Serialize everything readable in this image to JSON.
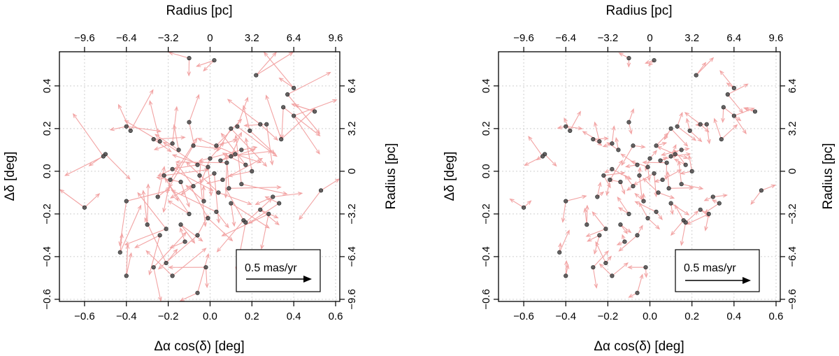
{
  "chart_data": [
    {
      "type": "scatter",
      "panel": "left",
      "xlabel": "Δα cos(δ) [deg]",
      "ylabel": "Δδ [deg]",
      "top_label": "Radius [pc]",
      "right_label": "Radius [pc]",
      "xlim": [
        -0.72,
        0.62
      ],
      "ylim": [
        -0.61,
        0.56
      ],
      "x_ticks": [
        "-0.6",
        "-0.4",
        "-0.2",
        "0.0",
        "0.2",
        "0.4",
        "0.6"
      ],
      "y_ticks": [
        "-0.6",
        "-0.4",
        "-0.2",
        "0.0",
        "0.2",
        "0.4"
      ],
      "top_ticks": [
        "-9.6",
        "-6.4",
        "-3.2",
        "0",
        "3.2",
        "6.4",
        "9.6"
      ],
      "right_ticks": [
        "-9.6",
        "-6.4",
        "-3.2",
        "0",
        "3.2",
        "6.4"
      ],
      "legend": "0.5 mas/yr",
      "points": [
        [
          -0.1,
          0.53
        ],
        [
          0.02,
          0.52
        ],
        [
          0.22,
          0.45
        ],
        [
          0.4,
          0.39
        ],
        [
          0.37,
          0.36
        ],
        [
          0.5,
          0.28
        ],
        [
          0.4,
          0.26
        ],
        [
          -0.4,
          0.21
        ],
        [
          -0.38,
          0.19
        ],
        [
          -0.24,
          0.14
        ],
        [
          -0.27,
          0.15
        ],
        [
          -0.18,
          0.13
        ],
        [
          -0.1,
          0.23
        ],
        [
          -0.08,
          0.12
        ],
        [
          0.03,
          0.12
        ],
        [
          0.1,
          0.2
        ],
        [
          0.13,
          0.21
        ],
        [
          0.19,
          0.19
        ],
        [
          0.24,
          0.22
        ],
        [
          0.27,
          0.22
        ],
        [
          0.34,
          0.15
        ],
        [
          -0.5,
          0.08
        ],
        [
          -0.51,
          0.07
        ],
        [
          -0.18,
          0.01
        ],
        [
          -0.22,
          -0.02
        ],
        [
          -0.19,
          -0.04
        ],
        [
          -0.14,
          -0.05
        ],
        [
          -0.08,
          -0.07
        ],
        [
          -0.06,
          0.03
        ],
        [
          -0.01,
          0.02
        ],
        [
          0.02,
          -0.01
        ],
        [
          0.05,
          0.05
        ],
        [
          0.08,
          0.04
        ],
        [
          0.1,
          0.07
        ],
        [
          0.12,
          0.08
        ],
        [
          0.15,
          0.1
        ],
        [
          0.17,
          0.03
        ],
        [
          0.2,
          0.0
        ],
        [
          0.15,
          -0.06
        ],
        [
          0.09,
          -0.08
        ],
        [
          0.04,
          -0.1
        ],
        [
          -0.03,
          -0.14
        ],
        [
          0.53,
          -0.09
        ],
        [
          0.33,
          -0.15
        ],
        [
          0.24,
          -0.18
        ],
        [
          0.28,
          -0.2
        ],
        [
          0.16,
          -0.23
        ],
        [
          0.17,
          -0.24
        ],
        [
          -0.1,
          -0.2
        ],
        [
          -0.14,
          -0.25
        ],
        [
          -0.21,
          -0.27
        ],
        [
          -0.24,
          -0.3
        ],
        [
          -0.3,
          -0.25
        ],
        [
          -0.4,
          -0.14
        ],
        [
          -0.6,
          -0.17
        ],
        [
          -0.12,
          -0.33
        ],
        [
          -0.06,
          -0.3
        ],
        [
          -0.01,
          -0.22
        ],
        [
          0.03,
          -0.19
        ],
        [
          -0.43,
          -0.38
        ],
        [
          -0.27,
          -0.45
        ],
        [
          -0.21,
          -0.43
        ],
        [
          -0.18,
          -0.49
        ],
        [
          -0.4,
          -0.49
        ],
        [
          -0.02,
          -0.45
        ],
        [
          -0.06,
          -0.57
        ],
        [
          0.1,
          -0.15
        ],
        [
          0.3,
          -0.12
        ],
        [
          0.35,
          0.3
        ],
        [
          -0.15,
          0.1
        ],
        [
          -0.05,
          -0.02
        ],
        [
          0.0,
          0.06
        ],
        [
          0.06,
          -0.04
        ],
        [
          -0.25,
          -0.12
        ]
      ]
    },
    {
      "type": "scatter",
      "panel": "right",
      "xlabel": "Δα cos(δ) [deg]",
      "ylabel": "Δδ [deg]",
      "top_label": "Radius [pc]",
      "right_label": "Radius [pc]",
      "xlim": [
        -0.72,
        0.62
      ],
      "ylim": [
        -0.61,
        0.56
      ],
      "x_ticks": [
        "-0.6",
        "-0.4",
        "-0.2",
        "0.0",
        "0.2",
        "0.4",
        "0.6"
      ],
      "y_ticks": [
        "-0.6",
        "-0.4",
        "-0.2",
        "0.0",
        "0.2",
        "0.4"
      ],
      "top_ticks": [
        "-9.6",
        "-6.4",
        "-3.2",
        "0",
        "3.2",
        "6.4",
        "9.6"
      ],
      "right_ticks": [
        "-9.6",
        "-6.4",
        "-3.2",
        "0",
        "3.2",
        "6.4"
      ],
      "legend": "0.5 mas/yr",
      "points": [
        [
          -0.1,
          0.53
        ],
        [
          0.02,
          0.52
        ],
        [
          0.22,
          0.45
        ],
        [
          0.4,
          0.39
        ],
        [
          0.37,
          0.36
        ],
        [
          0.5,
          0.28
        ],
        [
          0.4,
          0.26
        ],
        [
          -0.4,
          0.21
        ],
        [
          -0.38,
          0.19
        ],
        [
          -0.24,
          0.14
        ],
        [
          -0.27,
          0.15
        ],
        [
          -0.18,
          0.13
        ],
        [
          -0.1,
          0.23
        ],
        [
          -0.08,
          0.12
        ],
        [
          0.03,
          0.12
        ],
        [
          0.1,
          0.2
        ],
        [
          0.13,
          0.21
        ],
        [
          0.19,
          0.19
        ],
        [
          0.24,
          0.22
        ],
        [
          0.27,
          0.22
        ],
        [
          0.34,
          0.15
        ],
        [
          -0.5,
          0.08
        ],
        [
          -0.51,
          0.07
        ],
        [
          -0.18,
          0.01
        ],
        [
          -0.22,
          -0.02
        ],
        [
          -0.19,
          -0.04
        ],
        [
          -0.14,
          -0.05
        ],
        [
          -0.08,
          -0.07
        ],
        [
          -0.06,
          0.03
        ],
        [
          -0.01,
          0.02
        ],
        [
          0.02,
          -0.01
        ],
        [
          0.05,
          0.05
        ],
        [
          0.08,
          0.04
        ],
        [
          0.1,
          0.07
        ],
        [
          0.12,
          0.08
        ],
        [
          0.15,
          0.1
        ],
        [
          0.17,
          0.03
        ],
        [
          0.2,
          0.0
        ],
        [
          0.15,
          -0.06
        ],
        [
          0.09,
          -0.08
        ],
        [
          0.04,
          -0.1
        ],
        [
          -0.03,
          -0.14
        ],
        [
          0.53,
          -0.09
        ],
        [
          0.33,
          -0.15
        ],
        [
          0.24,
          -0.18
        ],
        [
          0.28,
          -0.2
        ],
        [
          0.16,
          -0.23
        ],
        [
          0.17,
          -0.24
        ],
        [
          -0.1,
          -0.2
        ],
        [
          -0.14,
          -0.25
        ],
        [
          -0.21,
          -0.27
        ],
        [
          -0.24,
          -0.3
        ],
        [
          -0.3,
          -0.25
        ],
        [
          -0.4,
          -0.14
        ],
        [
          -0.6,
          -0.17
        ],
        [
          -0.12,
          -0.33
        ],
        [
          -0.06,
          -0.3
        ],
        [
          -0.01,
          -0.22
        ],
        [
          0.03,
          -0.19
        ],
        [
          -0.43,
          -0.38
        ],
        [
          -0.27,
          -0.45
        ],
        [
          -0.21,
          -0.43
        ],
        [
          -0.18,
          -0.49
        ],
        [
          -0.4,
          -0.49
        ],
        [
          -0.02,
          -0.45
        ],
        [
          -0.06,
          -0.57
        ],
        [
          0.1,
          -0.15
        ],
        [
          0.3,
          -0.12
        ],
        [
          0.35,
          0.3
        ],
        [
          -0.15,
          0.1
        ],
        [
          -0.05,
          -0.02
        ],
        [
          0.0,
          0.06
        ],
        [
          0.06,
          -0.04
        ],
        [
          -0.25,
          -0.12
        ]
      ]
    }
  ],
  "colors": {
    "arrow": "#f2a3a3",
    "point": "#4a4a4a",
    "grid": "#cfcfcf"
  }
}
